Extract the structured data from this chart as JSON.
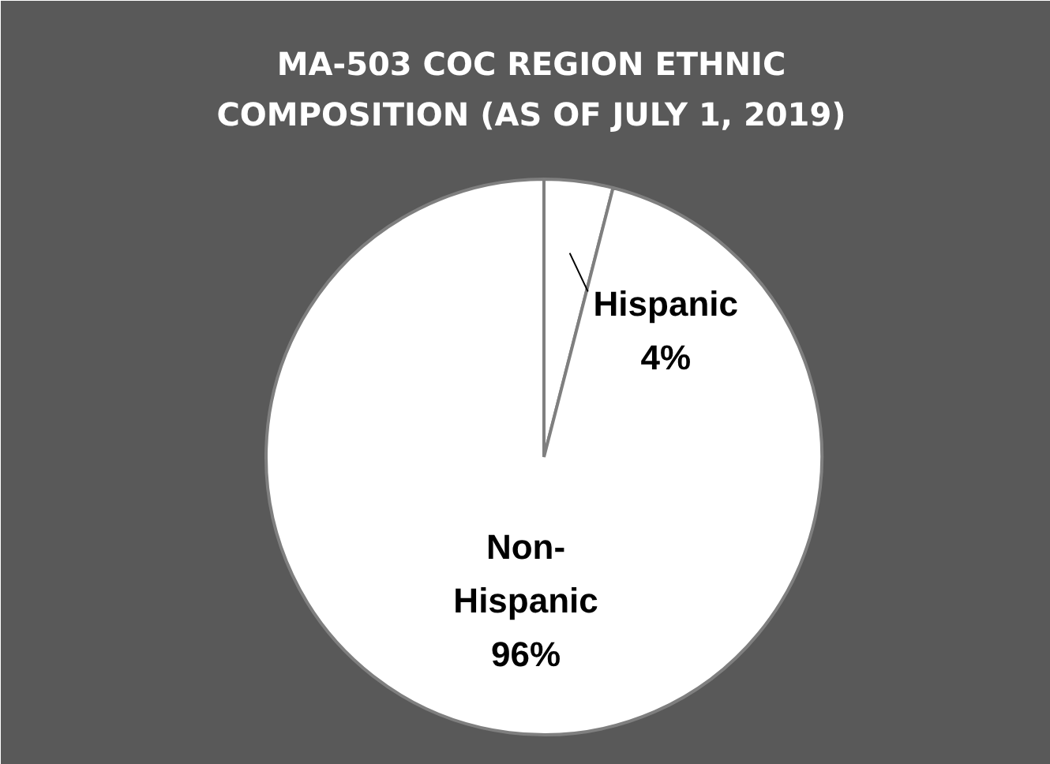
{
  "chart_data": {
    "type": "pie",
    "title": "MA-503 COC REGION ETHNIC COMPOSITION (AS OF JULY 1, 2019)",
    "categories": [
      "Hispanic",
      "Non-Hispanic"
    ],
    "values": [
      4,
      96
    ],
    "colors": [
      "#ffffff",
      "#ffffff"
    ],
    "value_labels": [
      "4%",
      "96%"
    ]
  }
}
